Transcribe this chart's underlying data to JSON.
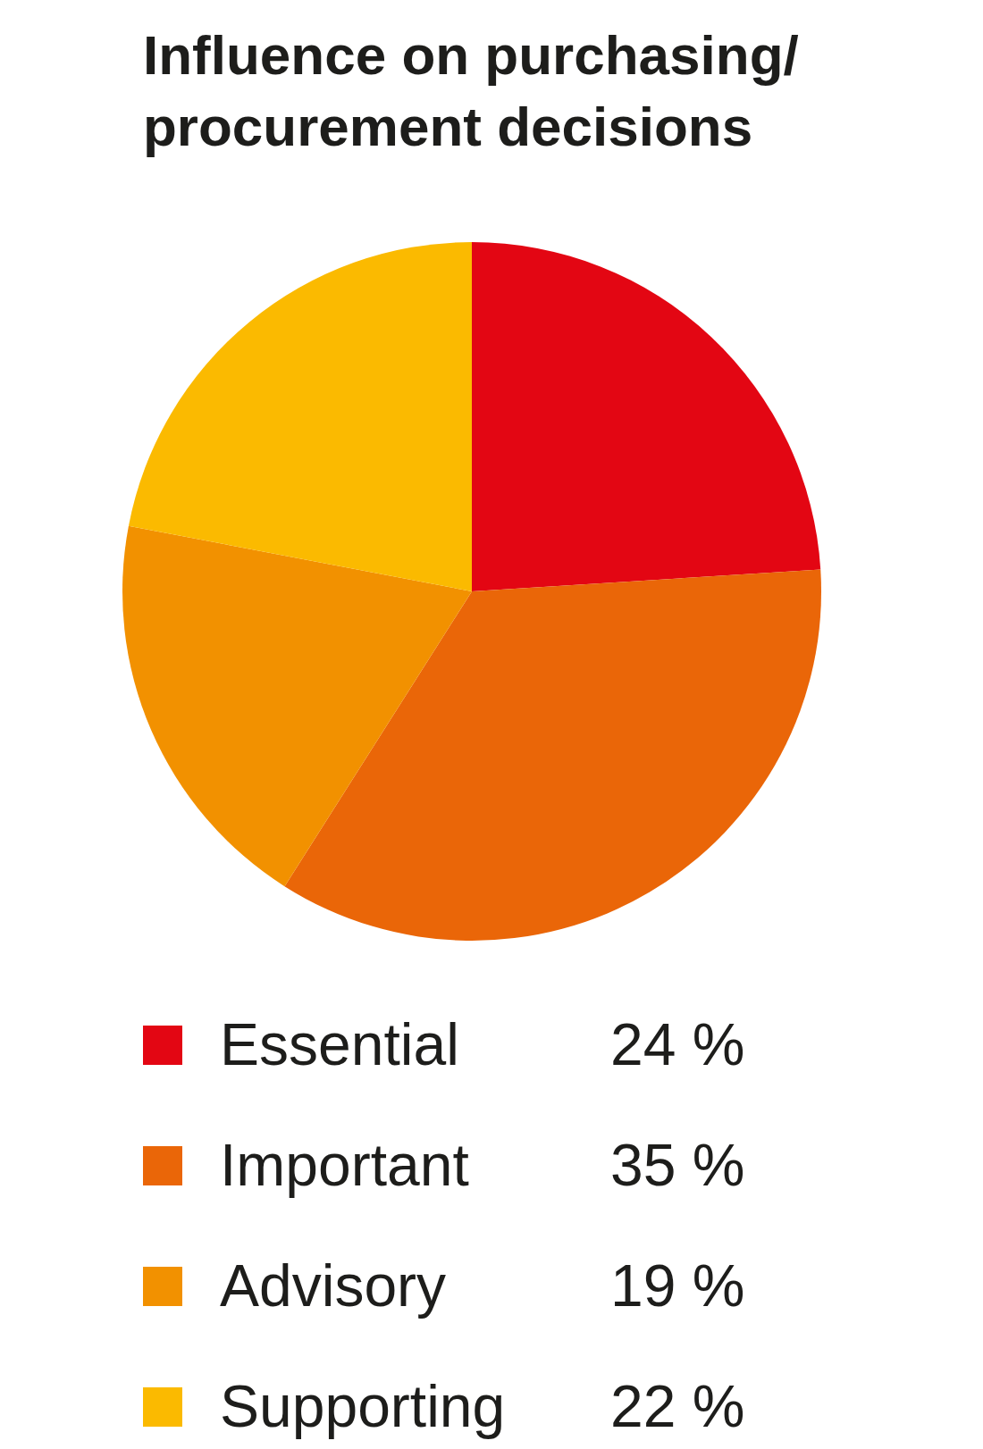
{
  "chart_data": {
    "type": "pie",
    "title": "Influence on purchasing/ procurement decisions",
    "categories": [
      "Essential",
      "Important",
      "Advisory",
      "Supporting"
    ],
    "values": [
      24,
      35,
      19,
      22
    ],
    "colors": [
      "#e30613",
      "#ea6608",
      "#f29100",
      "#fbba00"
    ],
    "value_labels": [
      "24 %",
      "35 %",
      "19 %",
      "22 %"
    ],
    "legend": "bottom"
  }
}
